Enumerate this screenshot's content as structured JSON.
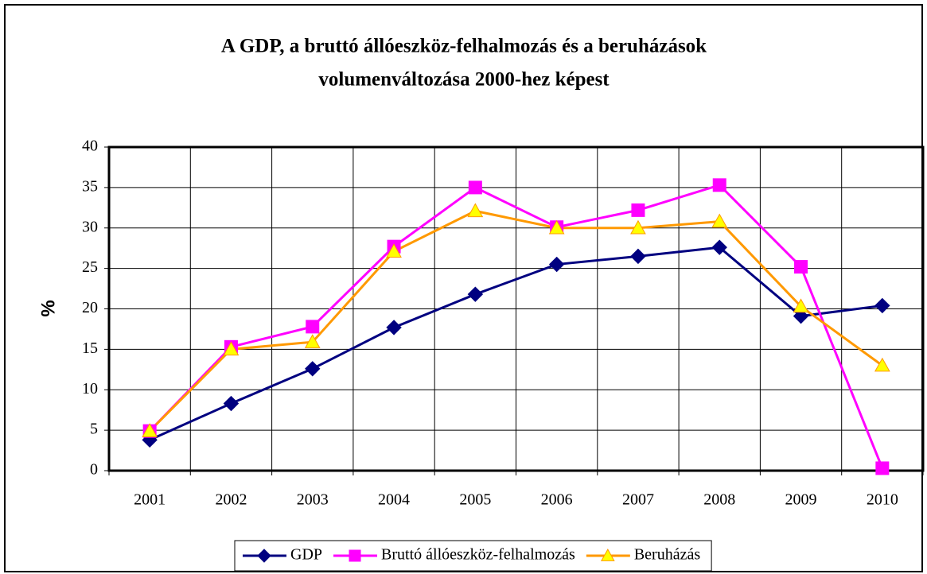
{
  "chart_data": {
    "type": "line",
    "title": [
      "A GDP, a bruttó állóeszköz-felhalmozás és a beruházások",
      "volumenváltozása 2000-hez képest"
    ],
    "y_label": "%",
    "categories": [
      "2001",
      "2002",
      "2003",
      "2004",
      "2005",
      "2006",
      "2007",
      "2008",
      "2009",
      "2010"
    ],
    "series": [
      {
        "name": "GDP",
        "color": "#000080",
        "marker": "diamond",
        "marker_color": "#000080",
        "values": [
          3.8,
          8.3,
          12.6,
          17.7,
          21.8,
          25.5,
          26.5,
          27.6,
          19.1,
          20.4
        ]
      },
      {
        "name": "Bruttó állóeszköz-felhalmozás",
        "color": "#ff00ff",
        "marker": "square",
        "marker_color": "#ff00ff",
        "values": [
          4.9,
          15.3,
          17.8,
          27.7,
          35.0,
          30.1,
          32.2,
          35.3,
          25.2,
          0.3
        ]
      },
      {
        "name": "Beruházás",
        "color": "#ff9900",
        "marker": "triangle",
        "marker_color": "#ffff00",
        "values": [
          4.9,
          15.0,
          15.9,
          27.1,
          32.1,
          30.0,
          30.0,
          30.8,
          20.3,
          13.0
        ]
      }
    ],
    "ylim": [
      0,
      40
    ],
    "yticks": [
      0,
      5,
      10,
      15,
      20,
      25,
      30,
      35,
      40
    ],
    "grid": true,
    "legend": "bottom"
  }
}
